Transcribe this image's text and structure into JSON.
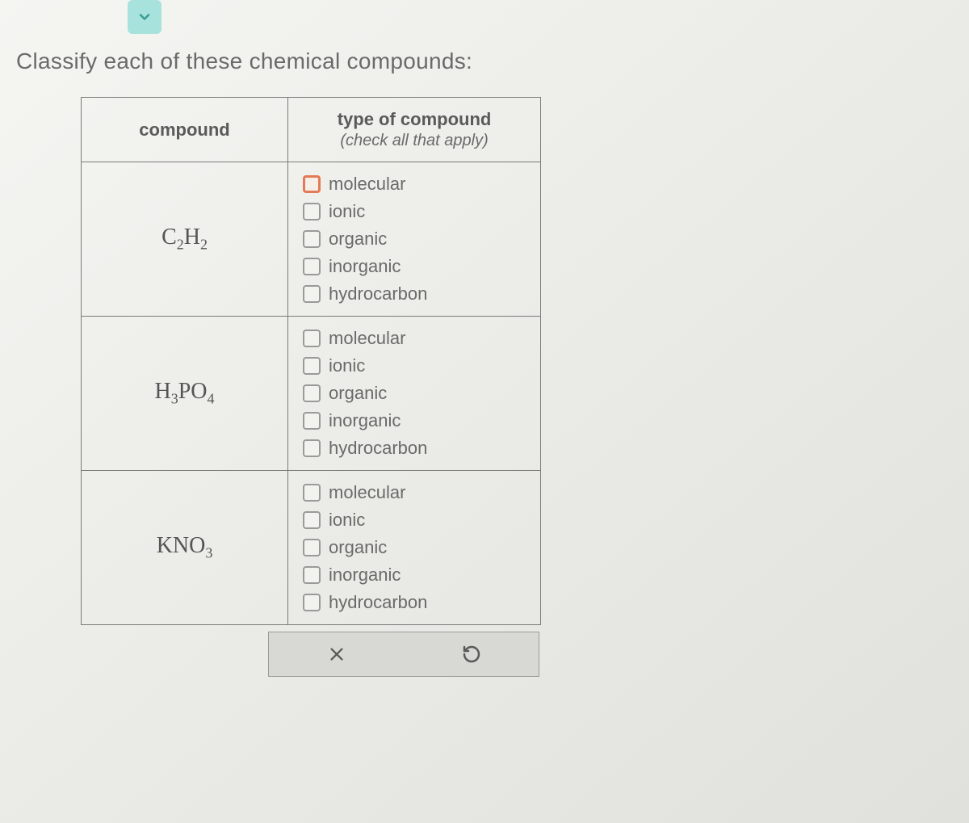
{
  "prompt": "Classify each of these chemical compounds:",
  "headers": {
    "compound": "compound",
    "type_main": "type of compound",
    "type_sub": "(check all that apply)"
  },
  "option_labels": {
    "molecular": "molecular",
    "ionic": "ionic",
    "organic": "organic",
    "inorganic": "inorganic",
    "hydrocarbon": "hydrocarbon"
  },
  "rows": [
    {
      "formula_parts": [
        "C",
        "2",
        "H",
        "2"
      ],
      "focused_option_index": 0
    },
    {
      "formula_parts": [
        "H",
        "3",
        "PO",
        "4"
      ],
      "focused_option_index": -1
    },
    {
      "formula_parts": [
        "KNO",
        "3"
      ],
      "focused_option_index": -1
    }
  ],
  "colors": {
    "page_bg": "#e8e8e6",
    "text": "#6a6a68",
    "border": "#7a7a78",
    "checkbox_border": "#9a9a98",
    "checkbox_focus": "#e37a55",
    "chevron_bg": "#a8e2dc",
    "chevron_stroke": "#3a9c94",
    "button_bar_bg": "#d8d8d4"
  }
}
